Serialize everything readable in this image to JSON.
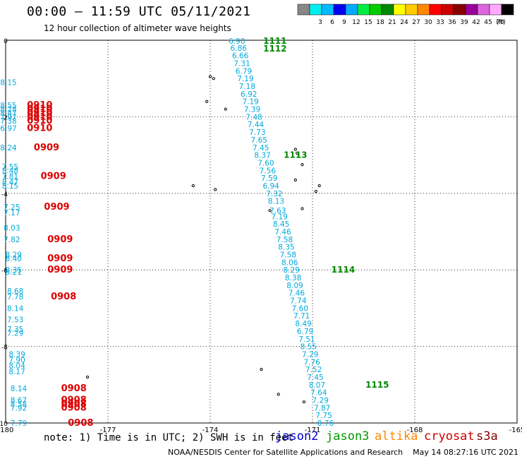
{
  "title": "00:00 – 11:59 UTC 05/11/2021",
  "subtitle": "12 hour collection of altimeter wave heights",
  "note": "note:  1) Time is in UTC; 2) SWH is in feet",
  "footer": "NOAA/NESDIS Center for Satellite Applications and Research    May 14 08:27:16 UTC 2021",
  "missions": [
    {
      "name": "jason2",
      "color": "#0000cc"
    },
    {
      "name": "jason3",
      "color": "#009900"
    },
    {
      "name": "altika",
      "color": "#ff8800"
    },
    {
      "name": "cryosat",
      "color": "#cc0000"
    },
    {
      "name": "s3a",
      "color": "#880000"
    }
  ],
  "legend": {
    "unit": "(ft)",
    "bins": [
      {
        "label": "",
        "color": "#888888"
      },
      {
        "label": "3",
        "color": "#00eeee"
      },
      {
        "label": "6",
        "color": "#00bbff"
      },
      {
        "label": "9",
        "color": "#0000ee"
      },
      {
        "label": "12",
        "color": "#00aaff"
      },
      {
        "label": "15",
        "color": "#00ee44"
      },
      {
        "label": "18",
        "color": "#00cc00"
      },
      {
        "label": "21",
        "color": "#008800"
      },
      {
        "label": "24",
        "color": "#ffff00"
      },
      {
        "label": "27",
        "color": "#ffcc00"
      },
      {
        "label": "30",
        "color": "#ff8800"
      },
      {
        "label": "33",
        "color": "#ff0000"
      },
      {
        "label": "36",
        "color": "#cc0000"
      },
      {
        "label": "39",
        "color": "#880000"
      },
      {
        "label": "42",
        "color": "#990099"
      },
      {
        "label": "45",
        "color": "#dd66dd"
      },
      {
        "label": "70",
        "color": "#ffaaff"
      },
      {
        "label": "",
        "color": "#000000"
      }
    ]
  },
  "chart_data": {
    "type": "scatter",
    "xlim": [
      -180,
      -165
    ],
    "ylim": [
      -10,
      0
    ],
    "x_ticks": [
      -180,
      -177,
      -174,
      -171,
      -168,
      -165
    ],
    "y_ticks": [
      0,
      -2,
      -4,
      -6,
      -8,
      -10
    ],
    "x_tick_labels": [
      "-180",
      "-177",
      "-174",
      "-171",
      "-168",
      "-165"
    ],
    "y_tick_labels": [
      "0",
      "-2",
      "-4",
      "-6",
      "-8",
      "-10"
    ],
    "grid": true,
    "colors": {
      "swh": "#00aadd",
      "time_cryosat": "#dd0000",
      "time_jason3": "#008800"
    },
    "swh_track_east": [
      {
        "lon": -173.3,
        "lat": -0.02,
        "swh": "6.90"
      },
      {
        "lon": -173.25,
        "lat": -0.2,
        "swh": "6.86"
      },
      {
        "lon": -173.2,
        "lat": -0.4,
        "swh": "6.66"
      },
      {
        "lon": -173.15,
        "lat": -0.6,
        "swh": "7.31"
      },
      {
        "lon": -173.1,
        "lat": -0.8,
        "swh": "6.79"
      },
      {
        "lon": -173.05,
        "lat": -1.0,
        "swh": "7.19"
      },
      {
        "lon": -173.0,
        "lat": -1.2,
        "swh": "7.18"
      },
      {
        "lon": -172.95,
        "lat": -1.4,
        "swh": "6.92"
      },
      {
        "lon": -172.9,
        "lat": -1.6,
        "swh": "7.19"
      },
      {
        "lon": -172.85,
        "lat": -1.8,
        "swh": "7.39"
      },
      {
        "lon": -172.8,
        "lat": -2.0,
        "swh": "7.48"
      },
      {
        "lon": -172.75,
        "lat": -2.2,
        "swh": "7.44"
      },
      {
        "lon": -172.7,
        "lat": -2.4,
        "swh": "7.73"
      },
      {
        "lon": -172.65,
        "lat": -2.6,
        "swh": "7.65"
      },
      {
        "lon": -172.6,
        "lat": -2.8,
        "swh": "7.45"
      },
      {
        "lon": -172.55,
        "lat": -3.0,
        "swh": "8.37"
      },
      {
        "lon": -172.45,
        "lat": -3.2,
        "swh": "7.60"
      },
      {
        "lon": -172.4,
        "lat": -3.4,
        "swh": "7.56"
      },
      {
        "lon": -172.35,
        "lat": -3.6,
        "swh": "7.59"
      },
      {
        "lon": -172.3,
        "lat": -3.8,
        "swh": "6.94"
      },
      {
        "lon": -172.2,
        "lat": -4.0,
        "swh": "7.32"
      },
      {
        "lon": -172.15,
        "lat": -4.2,
        "swh": "8.13"
      },
      {
        "lon": -172.1,
        "lat": -4.45,
        "swh": "7.63"
      },
      {
        "lon": -172.05,
        "lat": -4.6,
        "swh": "7.19"
      },
      {
        "lon": -172.0,
        "lat": -4.8,
        "swh": "8.45"
      },
      {
        "lon": -171.95,
        "lat": -5.0,
        "swh": "7.46"
      },
      {
        "lon": -171.9,
        "lat": -5.2,
        "swh": "7.58"
      },
      {
        "lon": -171.85,
        "lat": -5.4,
        "swh": "8.35"
      },
      {
        "lon": -171.8,
        "lat": -5.6,
        "swh": "7.58"
      },
      {
        "lon": -171.75,
        "lat": -5.8,
        "swh": "8.06"
      },
      {
        "lon": -171.7,
        "lat": -6.0,
        "swh": "8.29"
      },
      {
        "lon": -171.65,
        "lat": -6.2,
        "swh": "8.38"
      },
      {
        "lon": -171.6,
        "lat": -6.4,
        "swh": "8.09"
      },
      {
        "lon": -171.55,
        "lat": -6.6,
        "swh": "7.46"
      },
      {
        "lon": -171.5,
        "lat": -6.8,
        "swh": "7.74"
      },
      {
        "lon": -171.45,
        "lat": -7.0,
        "swh": "7.60"
      },
      {
        "lon": -171.4,
        "lat": -7.2,
        "swh": "7.71"
      },
      {
        "lon": -171.35,
        "lat": -7.4,
        "swh": "8.49"
      },
      {
        "lon": -171.3,
        "lat": -7.6,
        "swh": "6.79"
      },
      {
        "lon": -171.25,
        "lat": -7.8,
        "swh": "7.51"
      },
      {
        "lon": -171.2,
        "lat": -8.0,
        "swh": "8.55"
      },
      {
        "lon": -171.15,
        "lat": -8.2,
        "swh": "7.29"
      },
      {
        "lon": -171.1,
        "lat": -8.4,
        "swh": "7.76"
      },
      {
        "lon": -171.05,
        "lat": -8.6,
        "swh": "7.52"
      },
      {
        "lon": -171.0,
        "lat": -8.8,
        "swh": "7.45"
      },
      {
        "lon": -170.95,
        "lat": -9.0,
        "swh": "8.07"
      },
      {
        "lon": -170.9,
        "lat": -9.2,
        "swh": "7.64"
      },
      {
        "lon": -170.85,
        "lat": -9.4,
        "swh": "7.29"
      },
      {
        "lon": -170.8,
        "lat": -9.6,
        "swh": "7.87"
      },
      {
        "lon": -170.75,
        "lat": -9.8,
        "swh": "7.75"
      },
      {
        "lon": -170.7,
        "lat": -10.0,
        "swh": "8.76"
      }
    ],
    "time_labels_east": [
      {
        "lon": -172.1,
        "lat": -0.02,
        "text": "1111"
      },
      {
        "lon": -172.1,
        "lat": -0.22,
        "text": "1112"
      },
      {
        "lon": -171.5,
        "lat": -3.0,
        "text": "1113"
      },
      {
        "lon": -170.1,
        "lat": -6.0,
        "text": "1114"
      },
      {
        "lon": -169.1,
        "lat": -9.0,
        "text": "1115"
      }
    ],
    "swh_track_west": [
      {
        "lon": -180,
        "lat": -1.1,
        "swh": "8.15"
      },
      {
        "lon": -180,
        "lat": -1.7,
        "swh": "8.55"
      },
      {
        "lon": -180,
        "lat": -1.8,
        "swh": "8.28"
      },
      {
        "lon": -180,
        "lat": -1.9,
        "swh": "8.47"
      },
      {
        "lon": -180,
        "lat": -2.0,
        "swh": "7.97"
      },
      {
        "lon": -180,
        "lat": -2.1,
        "swh": "7.38"
      },
      {
        "lon": -180,
        "lat": -2.3,
        "swh": "6.97"
      },
      {
        "lon": -180,
        "lat": -2.8,
        "swh": "8.24"
      },
      {
        "lon": -179.95,
        "lat": -3.3,
        "swh": "7.55"
      },
      {
        "lon": -179.95,
        "lat": -3.4,
        "swh": "8.48"
      },
      {
        "lon": -179.95,
        "lat": -3.55,
        "swh": "7.81"
      },
      {
        "lon": -179.95,
        "lat": -3.7,
        "swh": "8.47"
      },
      {
        "lon": -179.95,
        "lat": -3.8,
        "swh": "8.15"
      },
      {
        "lon": -179.9,
        "lat": -4.35,
        "swh": "7.25"
      },
      {
        "lon": -179.9,
        "lat": -4.5,
        "swh": "7.17"
      },
      {
        "lon": -179.9,
        "lat": -4.9,
        "swh": "8.03"
      },
      {
        "lon": -179.9,
        "lat": -5.2,
        "swh": "7.82"
      },
      {
        "lon": -179.85,
        "lat": -5.6,
        "swh": "8.29"
      },
      {
        "lon": -179.85,
        "lat": -5.7,
        "swh": "8.40"
      },
      {
        "lon": -179.85,
        "lat": -6.0,
        "swh": "8.35"
      },
      {
        "lon": -179.85,
        "lat": -6.05,
        "swh": "8.21"
      },
      {
        "lon": -179.8,
        "lat": -6.55,
        "swh": "8.68"
      },
      {
        "lon": -179.8,
        "lat": -6.7,
        "swh": "7.78"
      },
      {
        "lon": -179.8,
        "lat": -7.0,
        "swh": "8.14"
      },
      {
        "lon": -179.8,
        "lat": -7.3,
        "swh": "7.53"
      },
      {
        "lon": -179.8,
        "lat": -7.55,
        "swh": "7.35"
      },
      {
        "lon": -179.8,
        "lat": -7.65,
        "swh": "7.29"
      },
      {
        "lon": -179.75,
        "lat": -8.2,
        "swh": "8.39"
      },
      {
        "lon": -179.75,
        "lat": -8.35,
        "swh": "7.90"
      },
      {
        "lon": -179.75,
        "lat": -8.5,
        "swh": "8.04"
      },
      {
        "lon": -179.75,
        "lat": -8.65,
        "swh": "8.17"
      },
      {
        "lon": -179.7,
        "lat": -9.1,
        "swh": "8.14"
      },
      {
        "lon": -179.7,
        "lat": -9.4,
        "swh": "8.67"
      },
      {
        "lon": -179.7,
        "lat": -9.5,
        "swh": "8.58"
      },
      {
        "lon": -179.7,
        "lat": -9.6,
        "swh": "7.92"
      },
      {
        "lon": -179.7,
        "lat": -10.0,
        "swh": "7.79"
      }
    ],
    "time_labels_west": [
      {
        "lon": -179.0,
        "lat": -1.7,
        "text": "0910"
      },
      {
        "lon": -179.0,
        "lat": -1.8,
        "text": "0910"
      },
      {
        "lon": -179.0,
        "lat": -1.9,
        "text": "0910"
      },
      {
        "lon": -179.0,
        "lat": -2.0,
        "text": "0910"
      },
      {
        "lon": -179.0,
        "lat": -2.1,
        "text": "0910"
      },
      {
        "lon": -179.0,
        "lat": -2.3,
        "text": "0910"
      },
      {
        "lon": -178.8,
        "lat": -2.8,
        "text": "0909"
      },
      {
        "lon": -178.6,
        "lat": -3.55,
        "text": "0909"
      },
      {
        "lon": -178.5,
        "lat": -4.35,
        "text": "0909"
      },
      {
        "lon": -178.4,
        "lat": -5.2,
        "text": "0909"
      },
      {
        "lon": -178.4,
        "lat": -5.7,
        "text": "0909"
      },
      {
        "lon": -178.4,
        "lat": -6.0,
        "text": "0909"
      },
      {
        "lon": -178.3,
        "lat": -6.7,
        "text": "0908"
      },
      {
        "lon": -178.0,
        "lat": -9.1,
        "text": "0908"
      },
      {
        "lon": -178.0,
        "lat": -9.4,
        "text": "0908"
      },
      {
        "lon": -178.0,
        "lat": -9.5,
        "text": "0908"
      },
      {
        "lon": -178.0,
        "lat": -9.6,
        "text": "0908"
      },
      {
        "lon": -177.8,
        "lat": -10.0,
        "text": "0908"
      }
    ],
    "islands": [
      {
        "lon": -174.0,
        "lat": -0.95
      },
      {
        "lon": -173.9,
        "lat": -1.0
      },
      {
        "lon": -174.1,
        "lat": -1.6
      },
      {
        "lon": -173.55,
        "lat": -1.8
      },
      {
        "lon": -174.5,
        "lat": -3.8
      },
      {
        "lon": -173.85,
        "lat": -3.9
      },
      {
        "lon": -171.5,
        "lat": -2.85
      },
      {
        "lon": -171.45,
        "lat": -2.95
      },
      {
        "lon": -171.3,
        "lat": -3.25
      },
      {
        "lon": -171.5,
        "lat": -3.65
      },
      {
        "lon": -170.8,
        "lat": -3.8
      },
      {
        "lon": -170.9,
        "lat": -3.95
      },
      {
        "lon": -172.25,
        "lat": -4.45
      },
      {
        "lon": -171.3,
        "lat": -4.4
      },
      {
        "lon": -172.5,
        "lat": -8.6
      },
      {
        "lon": -177.6,
        "lat": -8.8
      },
      {
        "lon": -172.0,
        "lat": -9.25
      },
      {
        "lon": -171.25,
        "lat": -9.45
      }
    ]
  }
}
